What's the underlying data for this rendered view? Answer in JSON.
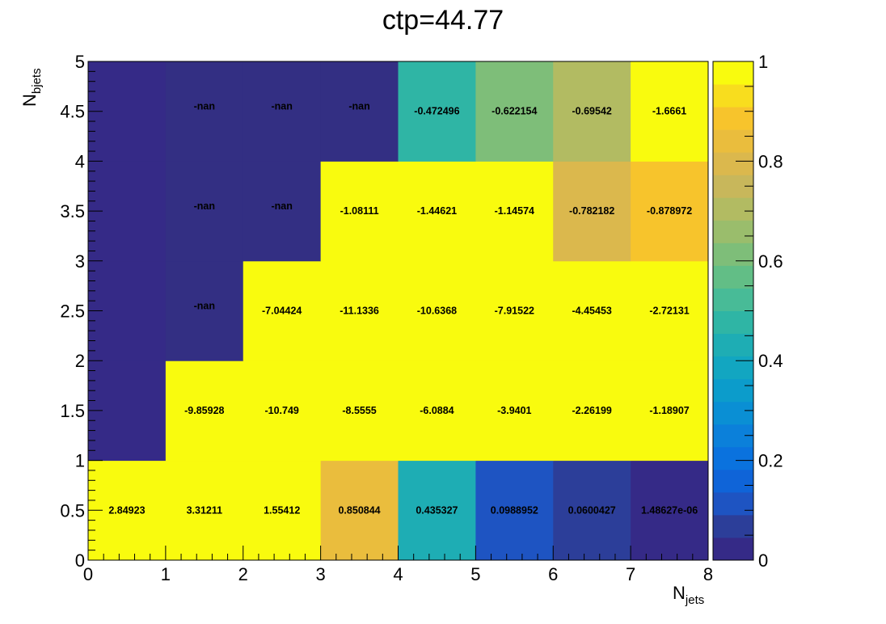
{
  "chart_data": {
    "type": "heatmap",
    "title": "ctp=44.77",
    "xlabel": {
      "main": "N",
      "sub": "jets"
    },
    "ylabel": {
      "main": "N",
      "sub": "bjets"
    },
    "xlim": [
      0,
      8
    ],
    "ylim": [
      0,
      5
    ],
    "zlim": [
      0,
      1
    ],
    "x_ticks": [
      "0",
      "1",
      "2",
      "3",
      "4",
      "5",
      "6",
      "7",
      "8"
    ],
    "y_ticks": [
      "0",
      "0.5",
      "1",
      "1.5",
      "2",
      "2.5",
      "3",
      "3.5",
      "4",
      "4.5",
      "5"
    ],
    "colorbar_ticks": [
      "0",
      "0.2",
      "0.4",
      "0.6",
      "0.8",
      "1"
    ],
    "x_edges": [
      0,
      1,
      2,
      3,
      4,
      5,
      6,
      7,
      8
    ],
    "y_edges": [
      0,
      1,
      2,
      3,
      4,
      5
    ],
    "cells": [
      [
        {
          "z": 1.0,
          "label": "2.84923"
        },
        {
          "z": 1.0,
          "label": "3.31211"
        },
        {
          "z": 1.0,
          "label": "1.55412"
        },
        {
          "z": 0.85,
          "label": "0.850844"
        },
        {
          "z": 0.435,
          "label": "0.435327"
        },
        {
          "z": 0.099,
          "label": "0.0988952"
        },
        {
          "z": 0.06,
          "label": "0.0600427"
        },
        {
          "z": 0.0,
          "label": "1.48627e-06"
        }
      ],
      [
        {
          "z": 0.0,
          "label": ""
        },
        {
          "z": 1.0,
          "label": "-9.85928"
        },
        {
          "z": 1.0,
          "label": "-10.749"
        },
        {
          "z": 1.0,
          "label": "-8.5555"
        },
        {
          "z": 1.0,
          "label": "-6.0884"
        },
        {
          "z": 1.0,
          "label": "-3.9401"
        },
        {
          "z": 1.0,
          "label": "-2.26199"
        },
        {
          "z": 1.0,
          "label": "-1.18907"
        }
      ],
      [
        {
          "z": 0.0,
          "label": ""
        },
        {
          "z": null,
          "label": "-nan"
        },
        {
          "z": 1.0,
          "label": "-7.04424"
        },
        {
          "z": 1.0,
          "label": "-11.1336"
        },
        {
          "z": 1.0,
          "label": "-10.6368"
        },
        {
          "z": 1.0,
          "label": "-7.91522"
        },
        {
          "z": 1.0,
          "label": "-4.45453"
        },
        {
          "z": 1.0,
          "label": "-2.72131"
        }
      ],
      [
        {
          "z": 0.0,
          "label": ""
        },
        {
          "z": null,
          "label": "-nan"
        },
        {
          "z": null,
          "label": "-nan"
        },
        {
          "z": 1.0,
          "label": "-1.08111"
        },
        {
          "z": 1.0,
          "label": "-1.44621"
        },
        {
          "z": 1.0,
          "label": "-1.14574"
        },
        {
          "z": 0.78,
          "label": "-0.782182"
        },
        {
          "z": 0.88,
          "label": "-0.878972"
        }
      ],
      [
        {
          "z": 0.0,
          "label": ""
        },
        {
          "z": null,
          "label": "-nan"
        },
        {
          "z": null,
          "label": "-nan"
        },
        {
          "z": null,
          "label": "-nan"
        },
        {
          "z": 0.472,
          "label": "-0.472496"
        },
        {
          "z": 0.622,
          "label": "-0.622154"
        },
        {
          "z": 0.695,
          "label": "-0.69542"
        },
        {
          "z": 1.0,
          "label": "-1.6661"
        }
      ]
    ],
    "colorscale": [
      "#352a87",
      "#2c3e99",
      "#1e54c2",
      "#0f64d8",
      "#0a72de",
      "#0b80da",
      "#0a8fd4",
      "#0c9ccb",
      "#12a6c1",
      "#1eadb4",
      "#2fb5a5",
      "#48bb97",
      "#62be86",
      "#7ebe79",
      "#9abd6c",
      "#b2bb62",
      "#c8b75b",
      "#dbb84d",
      "#eabd3d",
      "#f7c42c",
      "#f8dd1e",
      "#f9fb0e"
    ],
    "nan_color": "#332f83",
    "grid": false,
    "legend": "colorbar-right"
  }
}
